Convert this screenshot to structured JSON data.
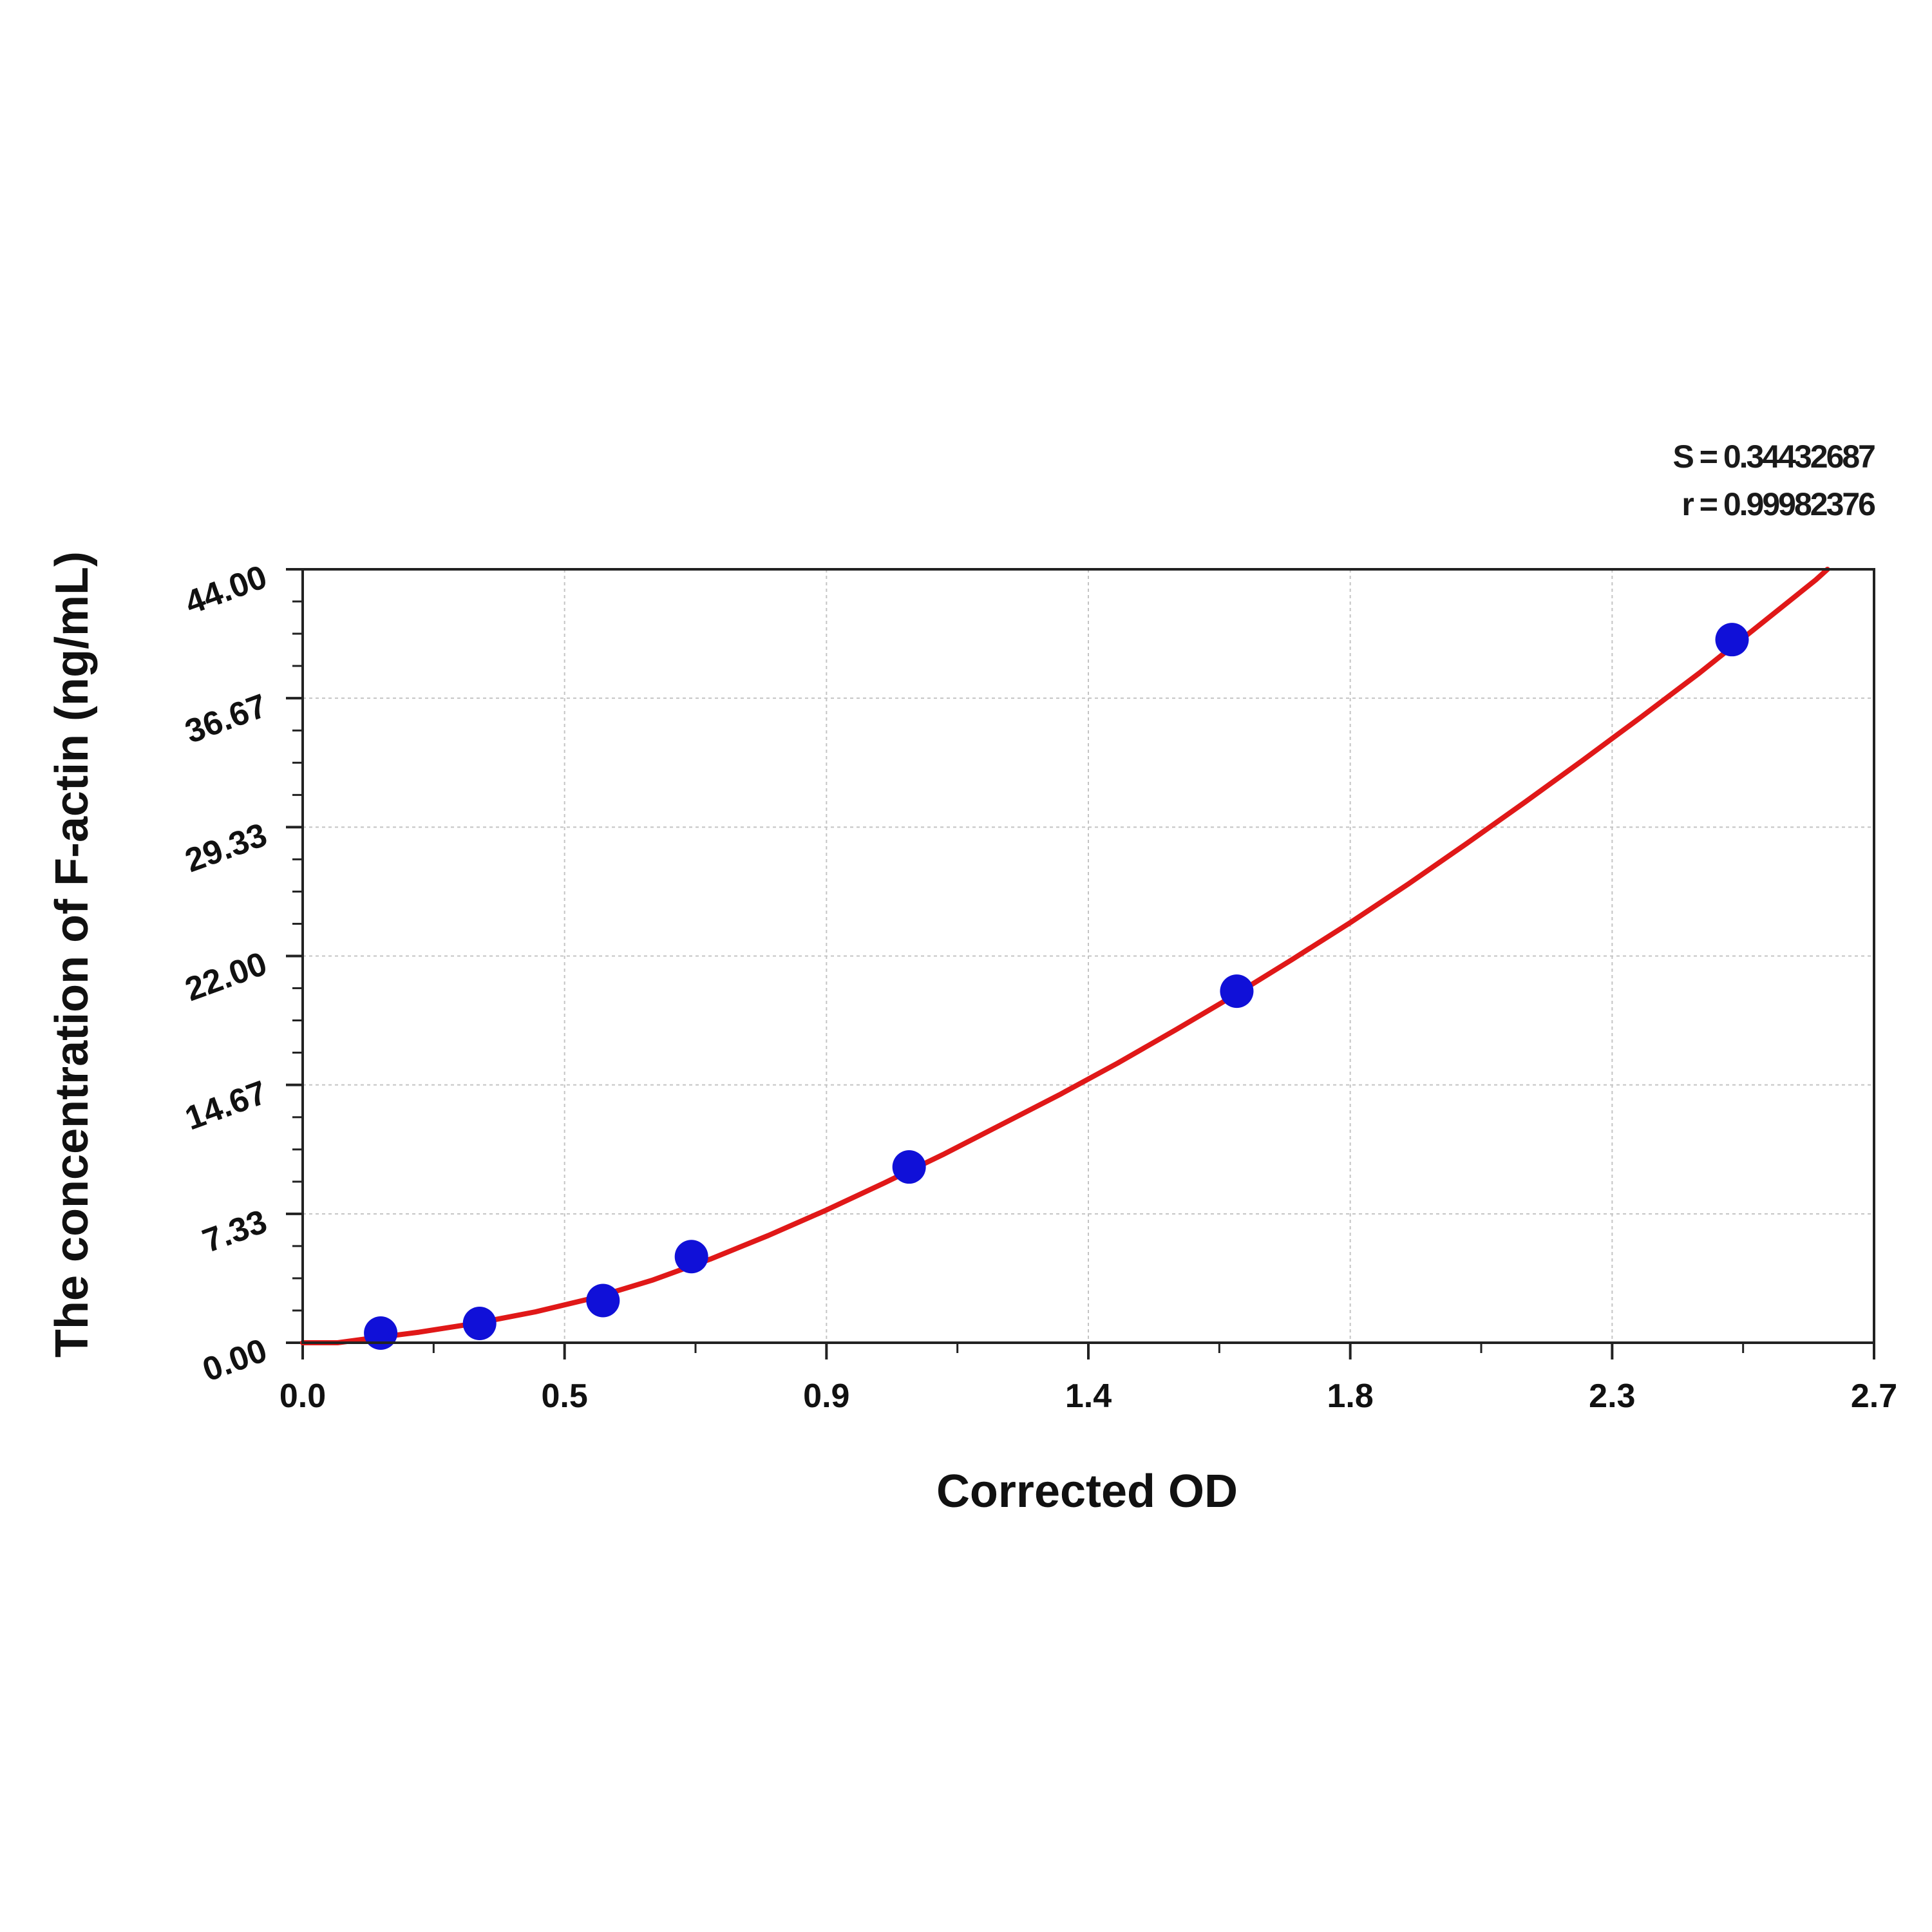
{
  "chart_data": {
    "type": "scatter",
    "title": "",
    "xlabel": "Corrected OD",
    "ylabel": "The concentration of F-actin (ng/mL)",
    "xlim": [
      0.0,
      2.7
    ],
    "ylim": [
      0.0,
      44.0
    ],
    "x_ticks": [
      0.0,
      0.45,
      0.9,
      1.35,
      1.8,
      2.25,
      2.7
    ],
    "x_tick_labels": [
      "0.0",
      "0.5",
      "0.9",
      "1.4",
      "1.8",
      "2.3",
      "2.7"
    ],
    "y_ticks": [
      0.0,
      7.33,
      14.67,
      22.0,
      29.33,
      36.67,
      44.0
    ],
    "y_tick_labels": [
      "0.00",
      "7.33",
      "14.67",
      "22.00",
      "29.33",
      "36.67",
      "44.00"
    ],
    "grid": true,
    "points": {
      "x": [
        0.134,
        0.304,
        0.516,
        0.668,
        1.042,
        1.605,
        2.456
      ],
      "y": [
        0.55,
        1.1,
        2.4,
        4.9,
        10.0,
        20.0,
        40.0
      ],
      "color": "#1010d8"
    },
    "fit_curve": {
      "color": "#e01818",
      "x": [
        0.0,
        0.06,
        0.1,
        0.2,
        0.3,
        0.4,
        0.5,
        0.6,
        0.7,
        0.8,
        0.9,
        1.0,
        1.1,
        1.2,
        1.3,
        1.4,
        1.5,
        1.6,
        1.7,
        1.8,
        1.9,
        2.0,
        2.1,
        2.2,
        2.3,
        2.4,
        2.5,
        2.6,
        2.62
      ],
      "y": [
        0.0,
        0.0,
        0.18,
        0.6,
        1.12,
        1.76,
        2.55,
        3.55,
        4.75,
        6.1,
        7.55,
        9.1,
        10.7,
        12.4,
        14.1,
        15.9,
        17.8,
        19.75,
        21.8,
        23.9,
        26.1,
        28.4,
        30.75,
        33.15,
        35.6,
        38.1,
        40.75,
        43.4,
        44.0
      ]
    },
    "annotations": [
      "S = 0.34432687",
      "r = 0.99982376"
    ]
  }
}
